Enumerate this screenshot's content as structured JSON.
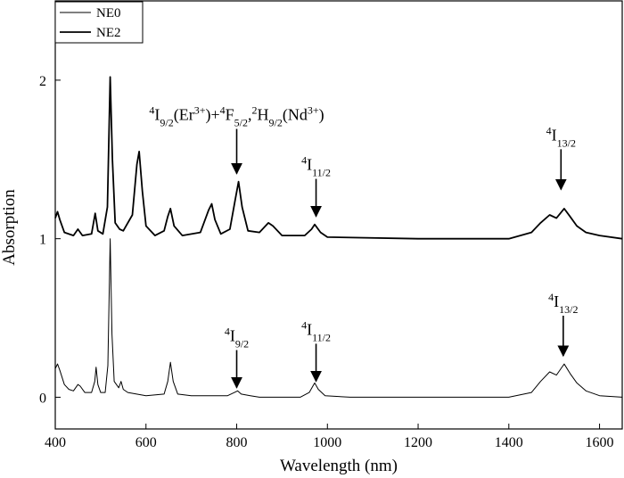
{
  "chart_data": {
    "type": "line",
    "x_label": "Wavelength (nm)",
    "y_label": "Absorption",
    "xlim": [
      400,
      1650
    ],
    "ylim": [
      -0.2,
      2.5
    ],
    "xticks": [
      400,
      600,
      800,
      1000,
      1200,
      1400,
      1600
    ],
    "yticks": [
      0,
      1,
      2
    ],
    "legend": "top-left",
    "series": [
      {
        "name": "NE0",
        "color": "#000000",
        "x": [
          400,
          405,
          410,
          420,
          430,
          440,
          450,
          455,
          465,
          480,
          487,
          490,
          494,
          500,
          510,
          516,
          521,
          525,
          530,
          540,
          545,
          550,
          560,
          600,
          640,
          648,
          654,
          660,
          670,
          700,
          780,
          795,
          802,
          810,
          830,
          850,
          940,
          960,
          972,
          980,
          995,
          1050,
          1200,
          1400,
          1450,
          1470,
          1490,
          1505,
          1522,
          1535,
          1550,
          1570,
          1600,
          1650
        ],
        "values": [
          0.18,
          0.21,
          0.17,
          0.08,
          0.05,
          0.04,
          0.08,
          0.07,
          0.03,
          0.03,
          0.1,
          0.19,
          0.08,
          0.03,
          0.03,
          0.2,
          1.0,
          0.4,
          0.1,
          0.06,
          0.1,
          0.05,
          0.03,
          0.01,
          0.02,
          0.1,
          0.22,
          0.1,
          0.02,
          0.01,
          0.01,
          0.03,
          0.04,
          0.02,
          0.01,
          0.0,
          0.0,
          0.03,
          0.09,
          0.05,
          0.01,
          0.0,
          0.0,
          0.0,
          0.03,
          0.1,
          0.16,
          0.14,
          0.21,
          0.15,
          0.09,
          0.04,
          0.01,
          0.0
        ]
      },
      {
        "name": "NE2",
        "color": "#000000",
        "x": [
          400,
          405,
          410,
          420,
          440,
          450,
          460,
          480,
          488,
          494,
          505,
          515,
          521,
          526,
          532,
          542,
          550,
          570,
          580,
          585,
          592,
          600,
          620,
          640,
          648,
          654,
          662,
          680,
          720,
          738,
          745,
          752,
          765,
          785,
          797,
          804,
          812,
          825,
          850,
          870,
          880,
          900,
          950,
          965,
          972,
          985,
          1000,
          1200,
          1400,
          1450,
          1470,
          1490,
          1505,
          1522,
          1535,
          1550,
          1570,
          1600,
          1650
        ],
        "values": [
          1.13,
          1.17,
          1.12,
          1.04,
          1.02,
          1.06,
          1.02,
          1.03,
          1.16,
          1.05,
          1.03,
          1.2,
          2.02,
          1.5,
          1.1,
          1.06,
          1.05,
          1.15,
          1.47,
          1.55,
          1.3,
          1.08,
          1.02,
          1.05,
          1.14,
          1.19,
          1.08,
          1.02,
          1.04,
          1.18,
          1.22,
          1.12,
          1.03,
          1.06,
          1.25,
          1.36,
          1.2,
          1.05,
          1.04,
          1.1,
          1.08,
          1.02,
          1.02,
          1.06,
          1.09,
          1.04,
          1.01,
          1.0,
          1.0,
          1.04,
          1.1,
          1.15,
          1.13,
          1.19,
          1.14,
          1.08,
          1.04,
          1.02,
          1.0
        ]
      }
    ],
    "annotations": [
      {
        "x": 800,
        "y": 1.4,
        "parts": [
          {
            "text": "4",
            "script": "sup"
          },
          {
            "text": "I"
          },
          {
            "text": "9/2",
            "script": "sub"
          },
          {
            "text": "(Er"
          },
          {
            "text": "3+",
            "script": "sup"
          },
          {
            "text": ")+"
          },
          {
            "text": "4",
            "script": "sup"
          },
          {
            "text": "F"
          },
          {
            "text": "5/2",
            "script": "sub"
          },
          {
            "text": ","
          },
          {
            "text": "2",
            "script": "sup"
          },
          {
            "text": "H"
          },
          {
            "text": "9/2",
            "script": "sub"
          },
          {
            "text": "(Nd"
          },
          {
            "text": "3+",
            "script": "sup"
          },
          {
            "text": ")"
          }
        ]
      },
      {
        "x": 975,
        "y": 1.13,
        "parts": [
          {
            "text": "4",
            "script": "sup"
          },
          {
            "text": "I"
          },
          {
            "text": "11/2",
            "script": "sub"
          }
        ]
      },
      {
        "x": 1515,
        "y": 1.3,
        "parts": [
          {
            "text": "4",
            "script": "sup"
          },
          {
            "text": "I"
          },
          {
            "text": "13/2",
            "script": "sub"
          }
        ]
      },
      {
        "x": 800,
        "y": 0.05,
        "parts": [
          {
            "text": "4",
            "script": "sup"
          },
          {
            "text": "I"
          },
          {
            "text": "9/2",
            "script": "sub"
          }
        ]
      },
      {
        "x": 975,
        "y": 0.09,
        "parts": [
          {
            "text": "4",
            "script": "sup"
          },
          {
            "text": "I"
          },
          {
            "text": "11/2",
            "script": "sub"
          }
        ]
      },
      {
        "x": 1520,
        "y": 0.25,
        "parts": [
          {
            "text": "4",
            "script": "sup"
          },
          {
            "text": "I"
          },
          {
            "text": "13/2",
            "script": "sub"
          }
        ]
      }
    ]
  }
}
